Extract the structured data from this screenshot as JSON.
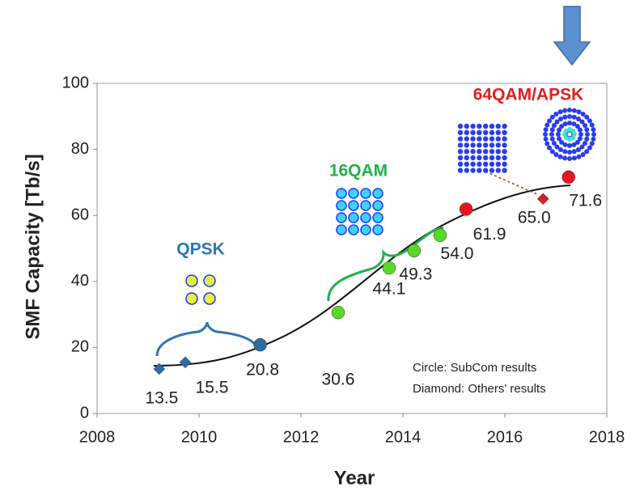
{
  "chart_data": {
    "type": "scatter",
    "x_label": "Year",
    "y_label": "SMF Capacity [Tb/s]",
    "xlim": [
      2008,
      2018
    ],
    "xticks": [
      2008,
      2010,
      2012,
      2014,
      2016,
      2018
    ],
    "ylim": [
      0,
      100
    ],
    "yticks": [
      0,
      20,
      40,
      60,
      80,
      100
    ],
    "series": [
      {
        "x": [
          2009.22,
          2009.73,
          2011.2,
          2012.73,
          2013.73,
          2014.22,
          2014.73,
          2015.24,
          2016.75,
          2017.25
        ],
        "values": [
          13.5,
          15.5,
          20.8,
          30.6,
          44.1,
          49.3,
          54.0,
          61.9,
          65.0,
          71.6
        ],
        "value_labels": [
          "13.5",
          "15.5",
          "20.8",
          "30.6",
          "44.1",
          "49.3",
          "54.0",
          "61.9",
          "65.0",
          "71.6"
        ],
        "colors": [
          "#2e6da4",
          "#2e6da4",
          "#2e6da4",
          "#5ad82a",
          "#5ad82a",
          "#5ad82a",
          "#5ad82a",
          "#e8141e",
          "#d42020",
          "#e8141e"
        ],
        "markers": [
          "diamond",
          "diamond",
          "circle",
          "circle",
          "circle",
          "circle",
          "circle",
          "circle",
          "diamond",
          "circle"
        ]
      }
    ],
    "annotations": [
      "QPSK",
      "16QAM",
      "64QAM/APSK",
      "Circle: SubCom results",
      "Diamond: Others' results"
    ]
  }
}
